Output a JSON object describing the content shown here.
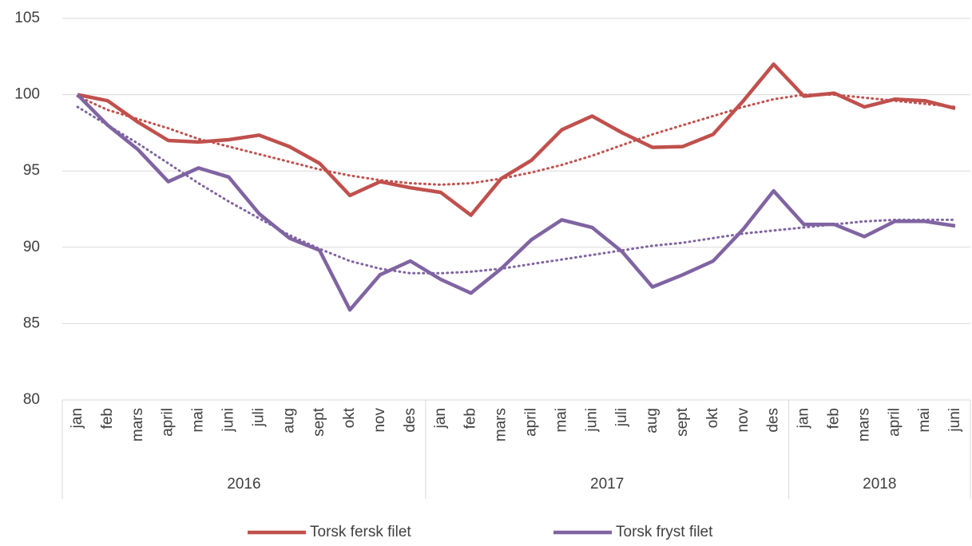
{
  "chart_data": {
    "type": "line",
    "category_groups": [
      {
        "label": "2016",
        "categories": [
          "jan",
          "feb",
          "mars",
          "april",
          "mai",
          "juni",
          "juli",
          "aug",
          "sept",
          "okt",
          "nov",
          "des"
        ]
      },
      {
        "label": "2017",
        "categories": [
          "jan",
          "feb",
          "mars",
          "april",
          "mai",
          "juni",
          "juli",
          "aug",
          "sept",
          "okt",
          "nov",
          "des"
        ]
      },
      {
        "label": "2018",
        "categories": [
          "jan",
          "feb",
          "mars",
          "april",
          "mai",
          "juni"
        ]
      }
    ],
    "series": [
      {
        "name": "Torsk fersk filet",
        "color": "#c0504d",
        "values": [
          100,
          99.6,
          98.2,
          97.0,
          96.9,
          97.05,
          97.35,
          96.6,
          95.5,
          93.4,
          94.3,
          93.9,
          93.6,
          92.1,
          94.5,
          95.7,
          97.7,
          98.6,
          97.5,
          96.55,
          96.6,
          97.4,
          99.6,
          102.0,
          99.9,
          100.1,
          99.2,
          99.7,
          99.6,
          99.1
        ],
        "trend": [
          99.9,
          99.0,
          98.4,
          97.8,
          97.1,
          96.6,
          96.1,
          95.6,
          95.1,
          94.7,
          94.4,
          94.2,
          94.1,
          94.2,
          94.5,
          94.9,
          95.4,
          96.0,
          96.7,
          97.4,
          98.0,
          98.6,
          99.2,
          99.7,
          100.0,
          100.0,
          99.8,
          99.6,
          99.4,
          99.2
        ]
      },
      {
        "name": "Torsk fryst filet",
        "color": "#8064a2",
        "values": [
          100,
          98.0,
          96.4,
          94.3,
          95.2,
          94.6,
          92.2,
          90.6,
          89.8,
          85.9,
          88.2,
          89.1,
          87.9,
          87.0,
          88.6,
          90.5,
          91.8,
          91.3,
          89.7,
          87.4,
          88.2,
          89.1,
          91.2,
          93.7,
          91.5,
          91.5,
          90.7,
          91.7,
          91.7,
          91.4
        ],
        "trend": [
          99.2,
          98.0,
          96.8,
          95.5,
          94.2,
          93.0,
          91.9,
          90.8,
          89.9,
          89.1,
          88.6,
          88.3,
          88.3,
          88.4,
          88.6,
          88.9,
          89.2,
          89.5,
          89.8,
          90.1,
          90.3,
          90.6,
          90.9,
          91.1,
          91.3,
          91.5,
          91.7,
          91.8,
          91.8,
          91.8
        ]
      }
    ],
    "ylim": [
      80,
      105
    ],
    "yticks": [
      80,
      85,
      90,
      95,
      100,
      105
    ],
    "grid": true,
    "legend": "bottom"
  }
}
